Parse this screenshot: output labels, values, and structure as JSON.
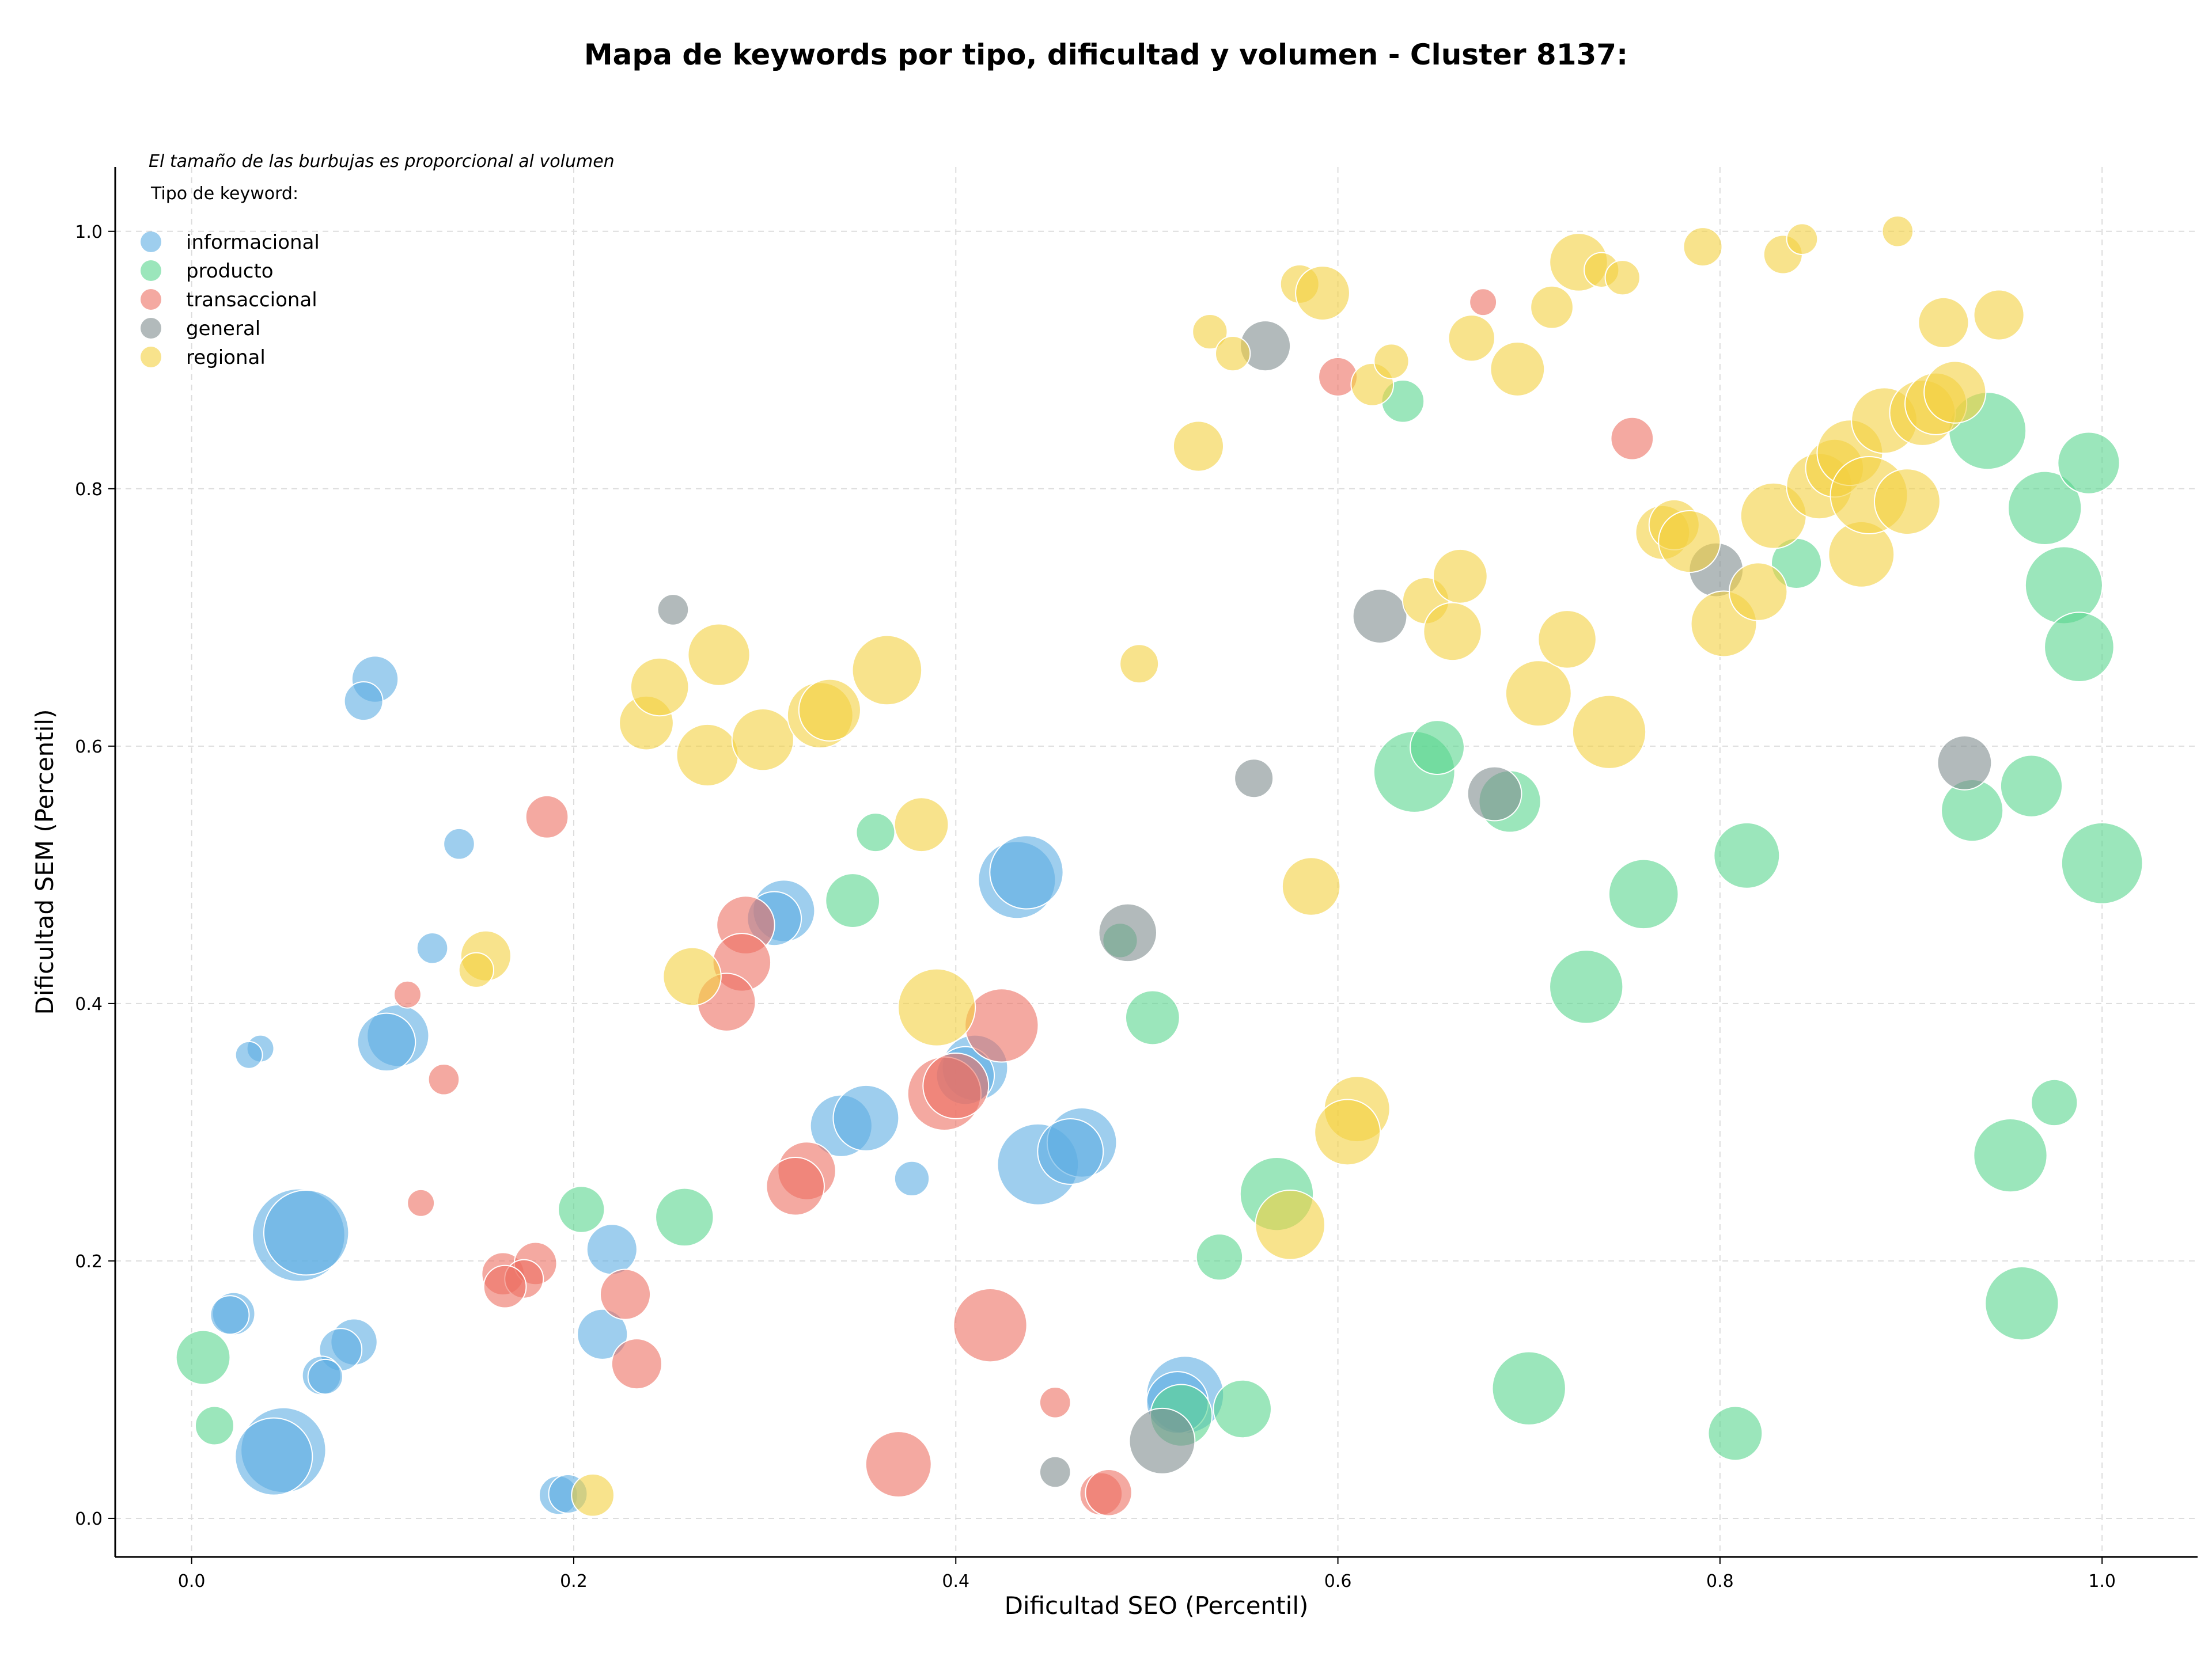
{
  "chart_data": {
    "type": "scatter",
    "title": "Mapa de keywords por tipo, dificultad y volumen - Cluster 8137:",
    "xlabel": "Dificultad SEO (Percentil)",
    "ylabel": "Dificultad SEM (Percentil)",
    "xlim": [
      -0.04,
      1.05
    ],
    "ylim": [
      -0.03,
      1.05
    ],
    "xticks": [
      "0.0",
      "0.2",
      "0.4",
      "0.6",
      "0.8",
      "1.0"
    ],
    "yticks": [
      "0.0",
      "0.2",
      "0.4",
      "0.6",
      "0.8",
      "1.0"
    ],
    "grid": true,
    "note": "El tamaño de las burbujas es proporcional al volumen",
    "legend_title": "Tipo de keyword:",
    "legend_position": "top-left",
    "series": [
      {
        "name": "informacional",
        "color": "#5dade2",
        "points": [
          [
            0.096,
            0.652,
            12
          ],
          [
            0.09,
            0.635,
            10
          ],
          [
            0.14,
            0.524,
            8
          ],
          [
            0.126,
            0.443,
            8
          ],
          [
            0.036,
            0.365,
            7
          ],
          [
            0.03,
            0.36,
            7
          ],
          [
            0.108,
            0.375,
            16
          ],
          [
            0.102,
            0.37,
            15
          ],
          [
            0.056,
            0.22,
            24
          ],
          [
            0.06,
            0.222,
            22
          ],
          [
            0.022,
            0.159,
            11
          ],
          [
            0.02,
            0.158,
            10
          ],
          [
            0.085,
            0.137,
            12
          ],
          [
            0.078,
            0.131,
            11
          ],
          [
            0.068,
            0.111,
            10
          ],
          [
            0.07,
            0.11,
            9
          ],
          [
            0.048,
            0.053,
            22
          ],
          [
            0.043,
            0.048,
            20
          ],
          [
            0.192,
            0.018,
            10
          ],
          [
            0.197,
            0.019,
            10
          ],
          [
            0.22,
            0.209,
            13
          ],
          [
            0.215,
            0.143,
            13
          ],
          [
            0.31,
            0.472,
            16
          ],
          [
            0.305,
            0.466,
            14
          ],
          [
            0.34,
            0.305,
            16
          ],
          [
            0.353,
            0.311,
            17
          ],
          [
            0.377,
            0.264,
            9
          ],
          [
            0.432,
            0.496,
            20
          ],
          [
            0.437,
            0.502,
            19
          ],
          [
            0.41,
            0.35,
            17
          ],
          [
            0.405,
            0.344,
            15
          ],
          [
            0.443,
            0.275,
            21
          ],
          [
            0.466,
            0.292,
            18
          ],
          [
            0.46,
            0.285,
            17
          ],
          [
            0.52,
            0.096,
            20
          ],
          [
            0.516,
            0.09,
            16
          ]
        ]
      },
      {
        "name": "producto",
        "color": "#58d68d",
        "points": [
          [
            0.006,
            0.125,
            14
          ],
          [
            0.012,
            0.072,
            10
          ],
          [
            0.204,
            0.24,
            12
          ],
          [
            0.258,
            0.234,
            15
          ],
          [
            0.358,
            0.533,
            10
          ],
          [
            0.346,
            0.48,
            14
          ],
          [
            0.486,
            0.449,
            9
          ],
          [
            0.503,
            0.389,
            14
          ],
          [
            0.538,
            0.203,
            12
          ],
          [
            0.55,
            0.085,
            15
          ],
          [
            0.518,
            0.08,
            16
          ],
          [
            0.568,
            0.252,
            19
          ],
          [
            0.634,
            0.868,
            11
          ],
          [
            0.64,
            0.58,
            21
          ],
          [
            0.652,
            0.599,
            14
          ],
          [
            0.69,
            0.557,
            16
          ],
          [
            0.7,
            0.101,
            19
          ],
          [
            0.73,
            0.413,
            19
          ],
          [
            0.76,
            0.485,
            18
          ],
          [
            0.808,
            0.066,
            14
          ],
          [
            0.814,
            0.515,
            17
          ],
          [
            0.84,
            0.742,
            13
          ],
          [
            0.94,
            0.845,
            20
          ],
          [
            0.97,
            0.785,
            19
          ],
          [
            0.993,
            0.82,
            16
          ],
          [
            0.98,
            0.725,
            20
          ],
          [
            0.988,
            0.677,
            18
          ],
          [
            0.932,
            0.55,
            16
          ],
          [
            0.963,
            0.569,
            16
          ],
          [
            1.0,
            0.509,
            21
          ],
          [
            0.975,
            0.323,
            12
          ],
          [
            0.952,
            0.282,
            19
          ],
          [
            0.958,
            0.167,
            19
          ]
        ]
      },
      {
        "name": "transaccional",
        "color": "#ec7063",
        "points": [
          [
            0.186,
            0.545,
            11
          ],
          [
            0.113,
            0.407,
            7
          ],
          [
            0.132,
            0.341,
            8
          ],
          [
            0.12,
            0.245,
            7
          ],
          [
            0.163,
            0.19,
            11
          ],
          [
            0.18,
            0.198,
            11
          ],
          [
            0.174,
            0.186,
            10
          ],
          [
            0.164,
            0.18,
            11
          ],
          [
            0.227,
            0.174,
            13
          ],
          [
            0.233,
            0.12,
            13
          ],
          [
            0.29,
            0.461,
            15
          ],
          [
            0.288,
            0.432,
            15
          ],
          [
            0.28,
            0.401,
            15
          ],
          [
            0.322,
            0.27,
            15
          ],
          [
            0.316,
            0.258,
            15
          ],
          [
            0.394,
            0.33,
            19
          ],
          [
            0.4,
            0.336,
            17
          ],
          [
            0.424,
            0.383,
            19
          ],
          [
            0.418,
            0.15,
            19
          ],
          [
            0.37,
            0.042,
            17
          ],
          [
            0.452,
            0.09,
            8
          ],
          [
            0.476,
            0.019,
            11
          ],
          [
            0.48,
            0.02,
            12
          ],
          [
            0.6,
            0.887,
            10
          ],
          [
            0.676,
            0.945,
            7
          ],
          [
            0.754,
            0.839,
            11
          ]
        ]
      },
      {
        "name": "general",
        "color": "#7f8c8d",
        "points": [
          [
            0.252,
            0.706,
            8
          ],
          [
            0.49,
            0.455,
            15
          ],
          [
            0.562,
            0.911,
            13
          ],
          [
            0.556,
            0.575,
            10
          ],
          [
            0.622,
            0.701,
            14
          ],
          [
            0.682,
            0.563,
            14
          ],
          [
            0.798,
            0.737,
            14
          ],
          [
            0.928,
            0.587,
            14
          ],
          [
            0.452,
            0.036,
            8
          ],
          [
            0.508,
            0.06,
            17
          ]
        ]
      },
      {
        "name": "regional",
        "color": "#f4d03f",
        "points": [
          [
            0.154,
            0.437,
            13
          ],
          [
            0.149,
            0.426,
            9
          ],
          [
            0.238,
            0.618,
            14
          ],
          [
            0.245,
            0.646,
            15
          ],
          [
            0.276,
            0.671,
            16
          ],
          [
            0.27,
            0.593,
            16
          ],
          [
            0.299,
            0.605,
            16
          ],
          [
            0.329,
            0.624,
            17
          ],
          [
            0.334,
            0.628,
            16
          ],
          [
            0.364,
            0.659,
            18
          ],
          [
            0.262,
            0.421,
            15
          ],
          [
            0.382,
            0.539,
            14
          ],
          [
            0.39,
            0.397,
            20
          ],
          [
            0.21,
            0.018,
            11
          ],
          [
            0.496,
            0.664,
            10
          ],
          [
            0.533,
            0.922,
            9
          ],
          [
            0.545,
            0.905,
            9
          ],
          [
            0.527,
            0.833,
            13
          ],
          [
            0.58,
            0.959,
            10
          ],
          [
            0.592,
            0.952,
            14
          ],
          [
            0.618,
            0.881,
            11
          ],
          [
            0.628,
            0.899,
            9
          ],
          [
            0.586,
            0.491,
            15
          ],
          [
            0.61,
            0.318,
            17
          ],
          [
            0.605,
            0.3,
            17
          ],
          [
            0.575,
            0.228,
            18
          ],
          [
            0.646,
            0.713,
            12
          ],
          [
            0.664,
            0.732,
            14
          ],
          [
            0.66,
            0.689,
            15
          ],
          [
            0.67,
            0.917,
            12
          ],
          [
            0.694,
            0.893,
            14
          ],
          [
            0.705,
            0.641,
            17
          ],
          [
            0.712,
            0.941,
            11
          ],
          [
            0.72,
            0.683,
            15
          ],
          [
            0.726,
            0.976,
            15
          ],
          [
            0.738,
            0.97,
            9
          ],
          [
            0.749,
            0.964,
            9
          ],
          [
            0.742,
            0.611,
            19
          ],
          [
            0.791,
            0.988,
            10
          ],
          [
            0.77,
            0.766,
            14
          ],
          [
            0.776,
            0.772,
            13
          ],
          [
            0.784,
            0.759,
            16
          ],
          [
            0.802,
            0.695,
            17
          ],
          [
            0.82,
            0.72,
            15
          ],
          [
            0.828,
            0.779,
            17
          ],
          [
            0.833,
            0.982,
            10
          ],
          [
            0.843,
            0.994,
            8
          ],
          [
            0.852,
            0.802,
            17
          ],
          [
            0.86,
            0.816,
            15
          ],
          [
            0.868,
            0.828,
            17
          ],
          [
            0.874,
            0.749,
            17
          ],
          [
            0.878,
            0.795,
            20
          ],
          [
            0.886,
            0.853,
            17
          ],
          [
            0.898,
            0.79,
            17
          ],
          [
            0.906,
            0.859,
            17
          ],
          [
            0.913,
            0.866,
            16
          ],
          [
            0.923,
            0.875,
            16
          ],
          [
            0.893,
            1.0,
            8
          ],
          [
            0.917,
            0.929,
            13
          ],
          [
            0.946,
            0.935,
            13
          ]
        ]
      }
    ]
  }
}
